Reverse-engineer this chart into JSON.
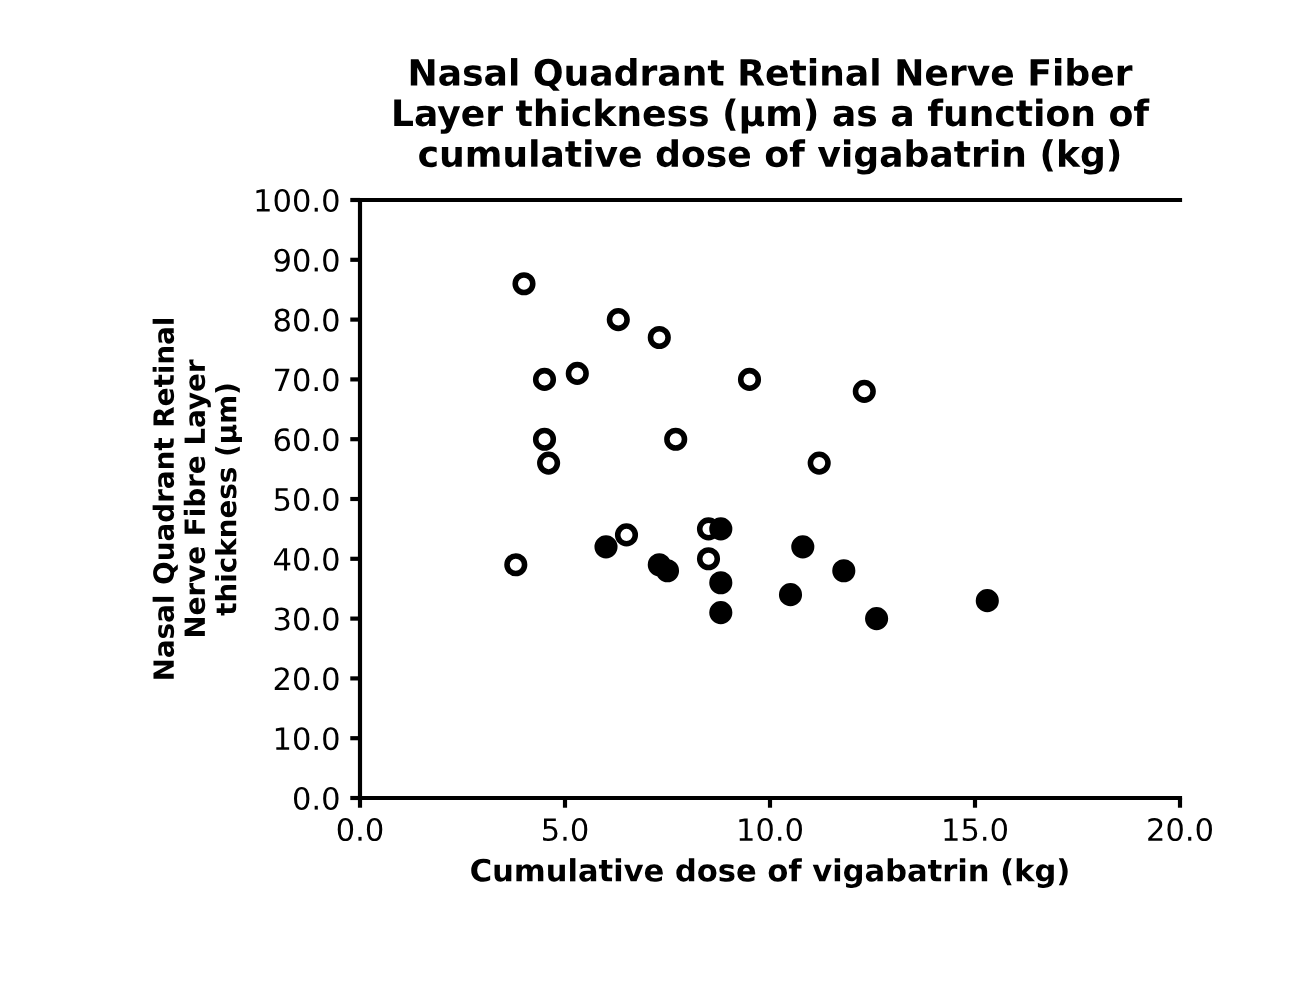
{
  "chart_data": {
    "type": "scatter",
    "title": "Nasal Quadrant Retinal Nerve Fiber\nLayer thickness (µm) as a function of\ncumulative dose of vigabatrin (kg)",
    "xlabel": "Cumulative dose of vigabatrin (kg)",
    "ylabel": "Nasal Quadrant Retinal\nNerve Fibre Layer\nthickness (µm)",
    "series": [
      {
        "color": "#ffffff",
        "x": [
          4.0,
          6.3,
          7.3,
          4.5,
          5.3,
          9.5,
          12.3,
          4.5,
          7.7,
          4.6,
          11.2,
          6.5,
          3.8,
          8.5,
          8.5
        ],
        "values": [
          86,
          80,
          77,
          70,
          71,
          70,
          68,
          60,
          60,
          56,
          56,
          44,
          39,
          45,
          40
        ]
      },
      {
        "color": "#000000",
        "x": [
          6.0,
          7.3,
          7.5,
          8.8,
          8.8,
          8.8,
          10.8,
          10.5,
          11.8,
          12.6,
          15.3
        ],
        "values": [
          42,
          39,
          38,
          45,
          36,
          31,
          42,
          34,
          38,
          30,
          33
        ]
      }
    ],
    "xlim": [
      0,
      20
    ],
    "xticks": [
      {
        "value": 0,
        "label": "0.0"
      },
      {
        "value": 5,
        "label": "5.0"
      },
      {
        "value": 10,
        "label": "10.0"
      },
      {
        "value": 15,
        "label": "15.0"
      },
      {
        "value": 20,
        "label": "20.0"
      }
    ],
    "ylim": [
      0,
      100
    ],
    "yticks": [
      {
        "value": 0,
        "label": "0.0"
      },
      {
        "value": 10,
        "label": "10.0"
      },
      {
        "value": 20,
        "label": "20.0"
      },
      {
        "value": 30,
        "label": "30.0"
      },
      {
        "value": 40,
        "label": "40.0"
      },
      {
        "value": 50,
        "label": "50.0"
      },
      {
        "value": 60,
        "label": "60.0"
      },
      {
        "value": 70,
        "label": "70.0"
      },
      {
        "value": 80,
        "label": "80.0"
      },
      {
        "value": 90,
        "label": "90.0"
      },
      {
        "value": 100,
        "label": "100.0"
      }
    ],
    "marker": "circle",
    "grid": false,
    "legend": false
  }
}
